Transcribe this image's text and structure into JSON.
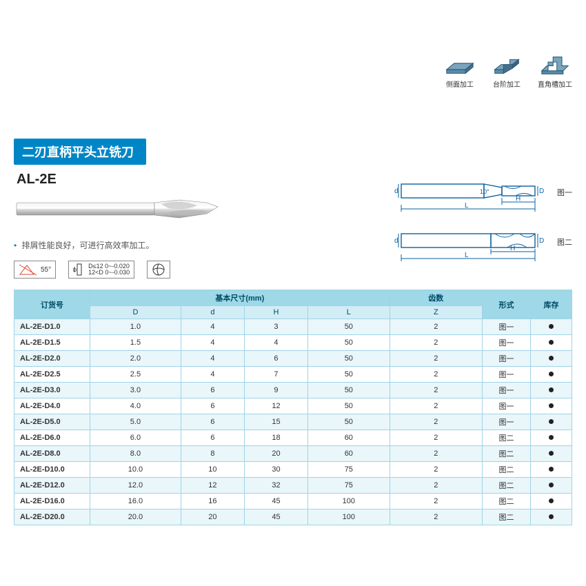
{
  "header": {
    "title": "二刃直柄平头立铣刀",
    "icons": [
      {
        "name": "side-milling-icon",
        "label": "侧面加工"
      },
      {
        "name": "step-milling-icon",
        "label": "台阶加工"
      },
      {
        "name": "slot-milling-icon",
        "label": "直角槽加工"
      }
    ]
  },
  "model": "AL-2E",
  "feature_text": "排屑性能良好，可进行高效率加工。",
  "badges": {
    "angle": "55°",
    "tol_line1": "D≤12  0~-0.020",
    "tol_line2": "12<D  0~-0.030"
  },
  "diagrams": {
    "fig1": "图一",
    "fig2": "图二",
    "angle_text": "10°"
  },
  "table": {
    "headers": {
      "order": "订货号",
      "dim_group": "基本尺寸(mm)",
      "D": "D",
      "d": "d",
      "H": "H",
      "L": "L",
      "Z": "齿数",
      "Zsub": "Z",
      "style": "形式",
      "stock": "库存"
    },
    "rows": [
      {
        "order": "AL-2E-D1.0",
        "D": "1.0",
        "d": "4",
        "H": "3",
        "L": "50",
        "Z": "2",
        "style": "图一"
      },
      {
        "order": "AL-2E-D1.5",
        "D": "1.5",
        "d": "4",
        "H": "4",
        "L": "50",
        "Z": "2",
        "style": "图一"
      },
      {
        "order": "AL-2E-D2.0",
        "D": "2.0",
        "d": "4",
        "H": "6",
        "L": "50",
        "Z": "2",
        "style": "图一"
      },
      {
        "order": "AL-2E-D2.5",
        "D": "2.5",
        "d": "4",
        "H": "7",
        "L": "50",
        "Z": "2",
        "style": "图一"
      },
      {
        "order": "AL-2E-D3.0",
        "D": "3.0",
        "d": "6",
        "H": "9",
        "L": "50",
        "Z": "2",
        "style": "图一"
      },
      {
        "order": "AL-2E-D4.0",
        "D": "4.0",
        "d": "6",
        "H": "12",
        "L": "50",
        "Z": "2",
        "style": "图一"
      },
      {
        "order": "AL-2E-D5.0",
        "D": "5.0",
        "d": "6",
        "H": "15",
        "L": "50",
        "Z": "2",
        "style": "图一"
      },
      {
        "order": "AL-2E-D6.0",
        "D": "6.0",
        "d": "6",
        "H": "18",
        "L": "60",
        "Z": "2",
        "style": "图二"
      },
      {
        "order": "AL-2E-D8.0",
        "D": "8.0",
        "d": "8",
        "H": "20",
        "L": "60",
        "Z": "2",
        "style": "图二"
      },
      {
        "order": "AL-2E-D10.0",
        "D": "10.0",
        "d": "10",
        "H": "30",
        "L": "75",
        "Z": "2",
        "style": "图二"
      },
      {
        "order": "AL-2E-D12.0",
        "D": "12.0",
        "d": "12",
        "H": "32",
        "L": "75",
        "Z": "2",
        "style": "图二"
      },
      {
        "order": "AL-2E-D16.0",
        "D": "16.0",
        "d": "16",
        "H": "45",
        "L": "100",
        "Z": "2",
        "style": "图二"
      },
      {
        "order": "AL-2E-D20.0",
        "D": "20.0",
        "d": "20",
        "H": "45",
        "L": "100",
        "Z": "2",
        "style": "图二"
      }
    ]
  },
  "colors": {
    "primary": "#0086c6",
    "th_bg": "#9fd9e8",
    "sub_bg": "#d2edf5",
    "row_alt": "#e9f6fa",
    "border": "#9fd3e6"
  }
}
